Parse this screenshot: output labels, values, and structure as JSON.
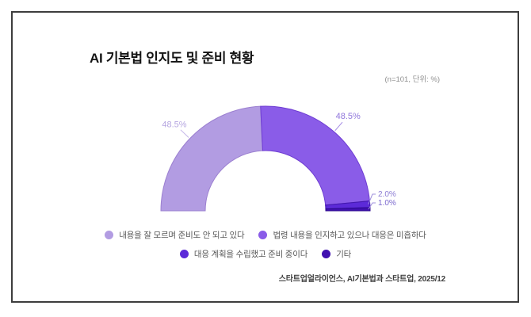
{
  "chart_card": {
    "title": "AI 기본법 인지도 및 준비 현황",
    "note": "(n=101, 단위: %)",
    "source": "스타트업얼라이언스, AI기본법과 스타트업, 2025/12"
  },
  "chart_data": {
    "type": "pie",
    "variant": "half_donut",
    "title": "AI 기본법 인지도 및 준비 현황",
    "n": 101,
    "unit": "%",
    "note": "(n=101, 단위: %)",
    "source": "스타트업얼라이언스, AI기본법과 스타트업, 2025/12",
    "legend_position": "bottom",
    "categories": [
      "내용을 잘 모르며 준비도 안 되고 있다",
      "법령 내용을 인지하고 있으나 대응은 미흡하다",
      "대응 계획을 수립했고 준비 중이다",
      "기타"
    ],
    "values": [
      48.5,
      48.5,
      2.0,
      1.0
    ],
    "data_labels": [
      "48.5%",
      "48.5%",
      "2.0%",
      "1.0%"
    ],
    "colors": [
      "#b29ce2",
      "#8a5ce8",
      "#5c2ad8",
      "#4010b0"
    ],
    "stroke_colors": [
      "#9b7fd0",
      "#6e3cd2",
      "#4318ae",
      "#2c0a8e"
    ],
    "label_colors": [
      "#b5a5e0",
      "#9177dc",
      "#8b7bd4",
      "#7a67ce"
    ],
    "leader_colors": [
      "#c3b5e8",
      "#a38ae4",
      "#9f90dc",
      "#9f90dc"
    ]
  }
}
